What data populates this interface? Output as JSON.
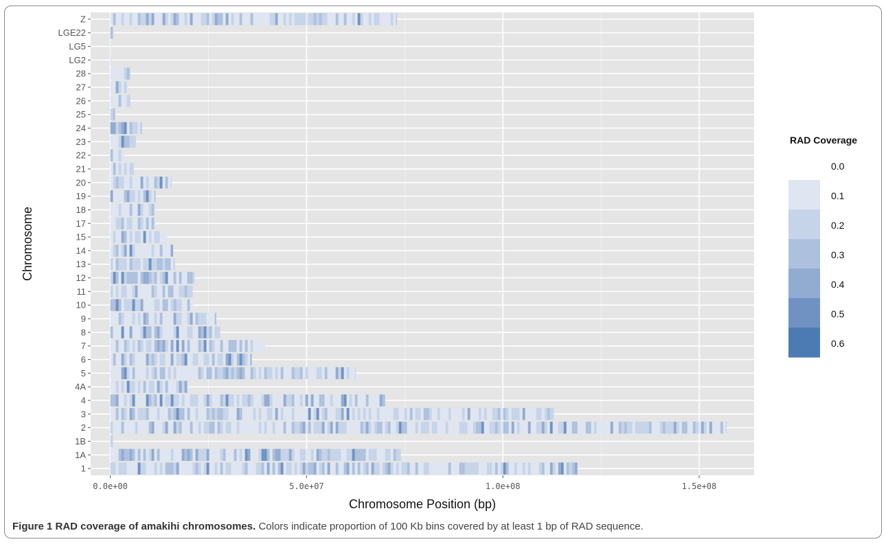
{
  "caption": {
    "label": "Figure 1 RAD coverage of amakihi chromosomes.",
    "text": "Colors indicate proportion of 100 Kb bins covered by at least 1 bp of RAD sequence."
  },
  "chart_data": {
    "type": "heatmap",
    "xlabel": "Chromosome Position (bp)",
    "ylabel": "Chromosome",
    "xlim": [
      -5000000,
      164000000
    ],
    "x_ticks": [
      {
        "value": 0,
        "label": "0.0e+00"
      },
      {
        "value": 50000000,
        "label": "5.0e+07"
      },
      {
        "value": 100000000,
        "label": "1.0e+08"
      },
      {
        "value": 150000000,
        "label": "1.5e+08"
      }
    ],
    "grid": true,
    "legend": {
      "title": "RAD Coverage",
      "position": "right",
      "breaks": [
        "0.0",
        "0.1",
        "0.2",
        "0.3",
        "0.4",
        "0.5",
        "0.6"
      ],
      "colors": [
        "#ffffff",
        "#dfe6f1",
        "#c6d4e9",
        "#adc1de",
        "#92abd1",
        "#6f92c3",
        "#4c7bb4"
      ]
    },
    "bin_size_bp": 100000,
    "chromosomes": [
      {
        "name": "1",
        "length": 119000000
      },
      {
        "name": "1A",
        "length": 74000000
      },
      {
        "name": "1B",
        "length": 700000
      },
      {
        "name": "2",
        "length": 157000000
      },
      {
        "name": "3",
        "length": 113000000
      },
      {
        "name": "4",
        "length": 70000000
      },
      {
        "name": "4A",
        "length": 20000000
      },
      {
        "name": "5",
        "length": 62500000
      },
      {
        "name": "6",
        "length": 36000000
      },
      {
        "name": "7",
        "length": 39500000
      },
      {
        "name": "8",
        "length": 28000000
      },
      {
        "name": "9",
        "length": 27000000
      },
      {
        "name": "10",
        "length": 21000000
      },
      {
        "name": "11",
        "length": 21000000
      },
      {
        "name": "12",
        "length": 21500000
      },
      {
        "name": "13",
        "length": 16500000
      },
      {
        "name": "14",
        "length": 16000000
      },
      {
        "name": "15",
        "length": 14500000
      },
      {
        "name": "17",
        "length": 11500000
      },
      {
        "name": "18",
        "length": 11500000
      },
      {
        "name": "19",
        "length": 11500000
      },
      {
        "name": "20",
        "length": 15500000
      },
      {
        "name": "21",
        "length": 6000000
      },
      {
        "name": "22",
        "length": 3500000
      },
      {
        "name": "23",
        "length": 6500000
      },
      {
        "name": "24",
        "length": 8000000
      },
      {
        "name": "25",
        "length": 1200000
      },
      {
        "name": "26",
        "length": 5000000
      },
      {
        "name": "27",
        "length": 4500000
      },
      {
        "name": "28",
        "length": 5000000
      },
      {
        "name": "LG2",
        "length": 300000
      },
      {
        "name": "LG5",
        "length": 100000
      },
      {
        "name": "LGE22",
        "length": 900000
      },
      {
        "name": "Z",
        "length": 73000000
      }
    ]
  }
}
